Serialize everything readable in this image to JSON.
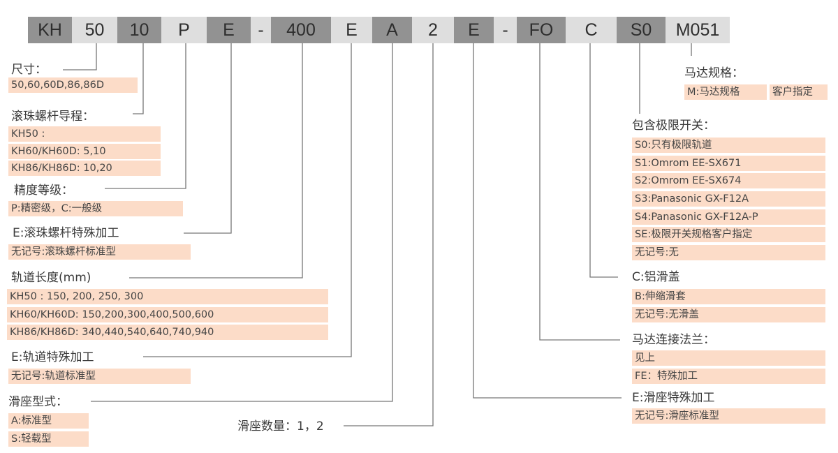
{
  "colors": {
    "dark_segment": "#929292",
    "light_segment": "#dedede",
    "option_fill": "#fcdcc8",
    "line": "#777777"
  },
  "code_segments": [
    "KH",
    "50",
    "10",
    "P",
    "E",
    "-",
    "400",
    "E",
    "A",
    "2",
    "E",
    "-",
    "FO",
    "C",
    "S0",
    "M051"
  ],
  "size": {
    "label": "尺寸：",
    "options": [
      "50,60,60D,86,86D"
    ]
  },
  "lead": {
    "label": "滚珠螺杆导程：",
    "options": [
      "KH50 :",
      "KH60/KH60D: 5,10",
      "KH86/KH86D: 10,20"
    ]
  },
  "precision": {
    "label": "精度等级：",
    "options": [
      "P:精密级，C:一般级"
    ]
  },
  "screw_special": {
    "label": "E:滚珠螺杆特殊加工",
    "options": [
      "无记号:滚珠螺杆标准型"
    ]
  },
  "rail_length": {
    "label": "轨道长度(mm)",
    "options": [
      "KH50 : 150, 200, 250, 300",
      "KH60/KH60D: 150,200,300,400,500,600",
      "KH86/KH86D: 340,440,540,640,740,940"
    ]
  },
  "rail_special": {
    "label": "E:轨道特殊加工",
    "options": [
      "无记号:轨道标准型"
    ]
  },
  "slider_type": {
    "label": "滑座型式：",
    "options": [
      "A:标准型",
      "S:轻载型"
    ]
  },
  "slider_count": {
    "label": "滑座数量：1，2"
  },
  "motor_spec": {
    "label": "马达规格：",
    "options": [
      "M:马达规格",
      "客户指定"
    ]
  },
  "limit_switch": {
    "label": "包含极限开关：",
    "options": [
      "S0:只有极限轨道",
      "S1:Omrom EE-SX671",
      "S2:Omrom EE-SX674",
      "S3:Panasonic GX-F12A",
      "S4:Panasonic GX-F12A-P",
      "SE:极限开关规格客户指定",
      "无记号:无"
    ]
  },
  "cover": {
    "label": "C:铝滑盖",
    "options": [
      "B:伸缩滑套",
      "无记号:无滑盖"
    ]
  },
  "flange": {
    "label": "马达连接法兰：",
    "options": [
      "见上",
      "FE：特殊加工"
    ]
  },
  "slider_special": {
    "label": "E:滑座特殊加工",
    "options": [
      "无记号:滑座标准型"
    ]
  }
}
